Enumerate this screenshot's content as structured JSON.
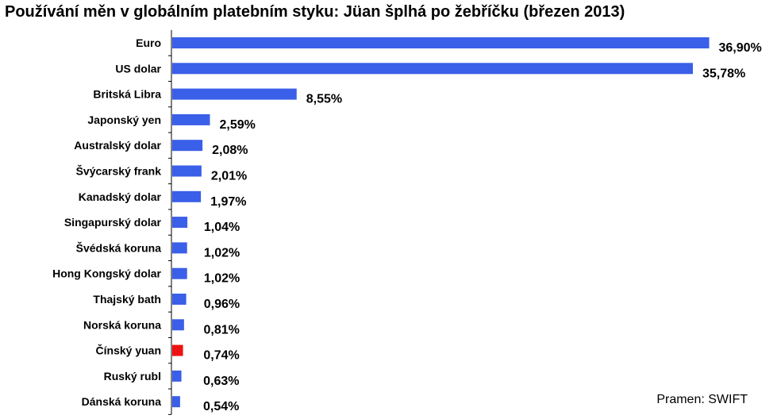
{
  "chart_data": {
    "type": "bar",
    "orientation": "horizontal",
    "title": "Používání měn v globálním platebním styku: Jüan šplhá po žebříčku (březen 2013)",
    "categories": [
      "Euro",
      "US dolar",
      "Britská Libra",
      "Japonský yen",
      "Australský dolar",
      "Švýcarský frank",
      "Kanadský dolar",
      "Singapurský dolar",
      "Švédská koruna",
      "Hong Kongský dolar",
      "Thajský bath",
      "Norská koruna",
      "Čínský yuan",
      "Ruský rubl",
      "Dánská koruna"
    ],
    "values": [
      36.9,
      35.78,
      8.55,
      2.59,
      2.08,
      2.01,
      1.97,
      1.04,
      1.02,
      1.02,
      0.96,
      0.81,
      0.74,
      0.63,
      0.54
    ],
    "value_labels": [
      "36,90%",
      "35,78%",
      "8,55%",
      "2,59%",
      "2,08%",
      "2,01%",
      "1,97%",
      "1,04%",
      "1,02%",
      "1,02%",
      "0,96%",
      "0,81%",
      "0,74%",
      "0,63%",
      "0,54%"
    ],
    "xlim": [
      0,
      37.2
    ],
    "grid": false,
    "colors": {
      "default": "#3a5fe8",
      "highlight": "#ee1111"
    },
    "highlight_category": "Čínský yuan",
    "source": "Pramen: SWIFT"
  }
}
